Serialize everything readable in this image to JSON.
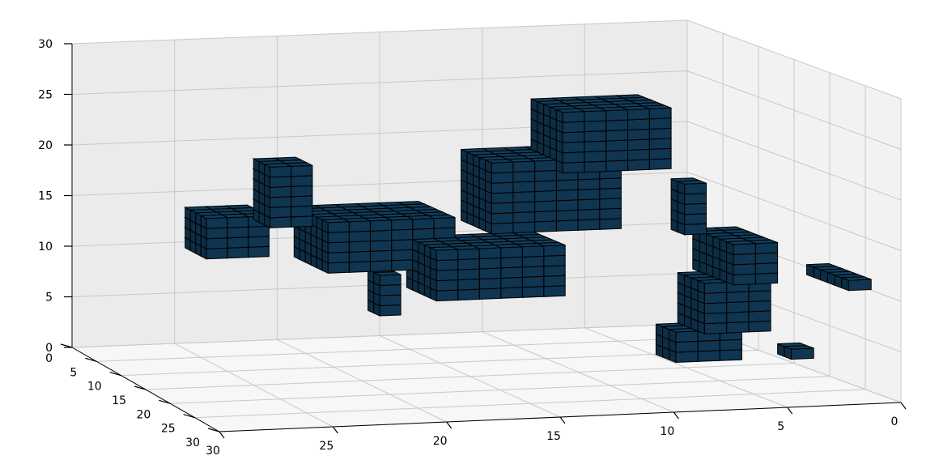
{
  "chart_data": {
    "type": "voxel-3d",
    "title": "",
    "xlabel": "",
    "ylabel": "",
    "zlabel": "",
    "xlim": [
      0,
      30
    ],
    "ylim": [
      0,
      30
    ],
    "zlim": [
      0,
      30
    ],
    "grid": true,
    "x_ticks": [
      "0",
      "5",
      "10",
      "15",
      "20",
      "25",
      "30"
    ],
    "y_ticks": [
      "30",
      "25",
      "20",
      "15",
      "10",
      "5",
      "0"
    ],
    "z_ticks": [
      "0",
      "5",
      "10",
      "15",
      "20",
      "25",
      "30"
    ],
    "voxel_color": "#0f3550",
    "voxel_edge_color": "#000000",
    "voxel_regions": [
      {
        "part": "left-cluster",
        "x": [
          9,
          13
        ],
        "y": [
          3,
          6
        ],
        "z": [
          5,
          10
        ]
      },
      {
        "part": "left-cluster",
        "x": [
          8,
          14
        ],
        "y": [
          3,
          5
        ],
        "z": [
          10,
          14
        ]
      },
      {
        "part": "left-cluster",
        "x": [
          10,
          13
        ],
        "y": [
          4,
          7
        ],
        "z": [
          2,
          5
        ]
      },
      {
        "part": "left-arm",
        "x": [
          1,
          7
        ],
        "y": [
          1,
          2
        ],
        "z": [
          11,
          12
        ]
      },
      {
        "part": "left-arm",
        "x": [
          6,
          8
        ],
        "y": [
          2,
          3
        ],
        "z": [
          3,
          4
        ]
      },
      {
        "part": "left-stem",
        "x": [
          12,
          14
        ],
        "y": [
          5,
          6
        ],
        "z": [
          14,
          19
        ]
      },
      {
        "part": "center-cluster",
        "x": [
          17,
          22
        ],
        "y": [
          10,
          16
        ],
        "z": [
          7,
          12
        ]
      },
      {
        "part": "center-cluster",
        "x": [
          21,
          27
        ],
        "y": [
          14,
          20
        ],
        "z": [
          9,
          14
        ]
      },
      {
        "part": "right-arm",
        "x": [
          24,
          28
        ],
        "y": [
          22,
          25
        ],
        "z": [
          10,
          14
        ]
      },
      {
        "part": "right-stem",
        "x": [
          23,
          25
        ],
        "y": [
          16,
          17
        ],
        "z": [
          4,
          8
        ]
      },
      {
        "part": "right-spike",
        "x": [
          20,
          23
        ],
        "y": [
          21,
          23
        ],
        "z": [
          14,
          20
        ]
      },
      {
        "part": "upper-ridge",
        "x": [
          15,
          20
        ],
        "y": [
          8,
          14
        ],
        "z": [
          14,
          21
        ]
      },
      {
        "part": "upper-ridge",
        "x": [
          14,
          19
        ],
        "y": [
          6,
          11
        ],
        "z": [
          20,
          26
        ]
      }
    ]
  }
}
